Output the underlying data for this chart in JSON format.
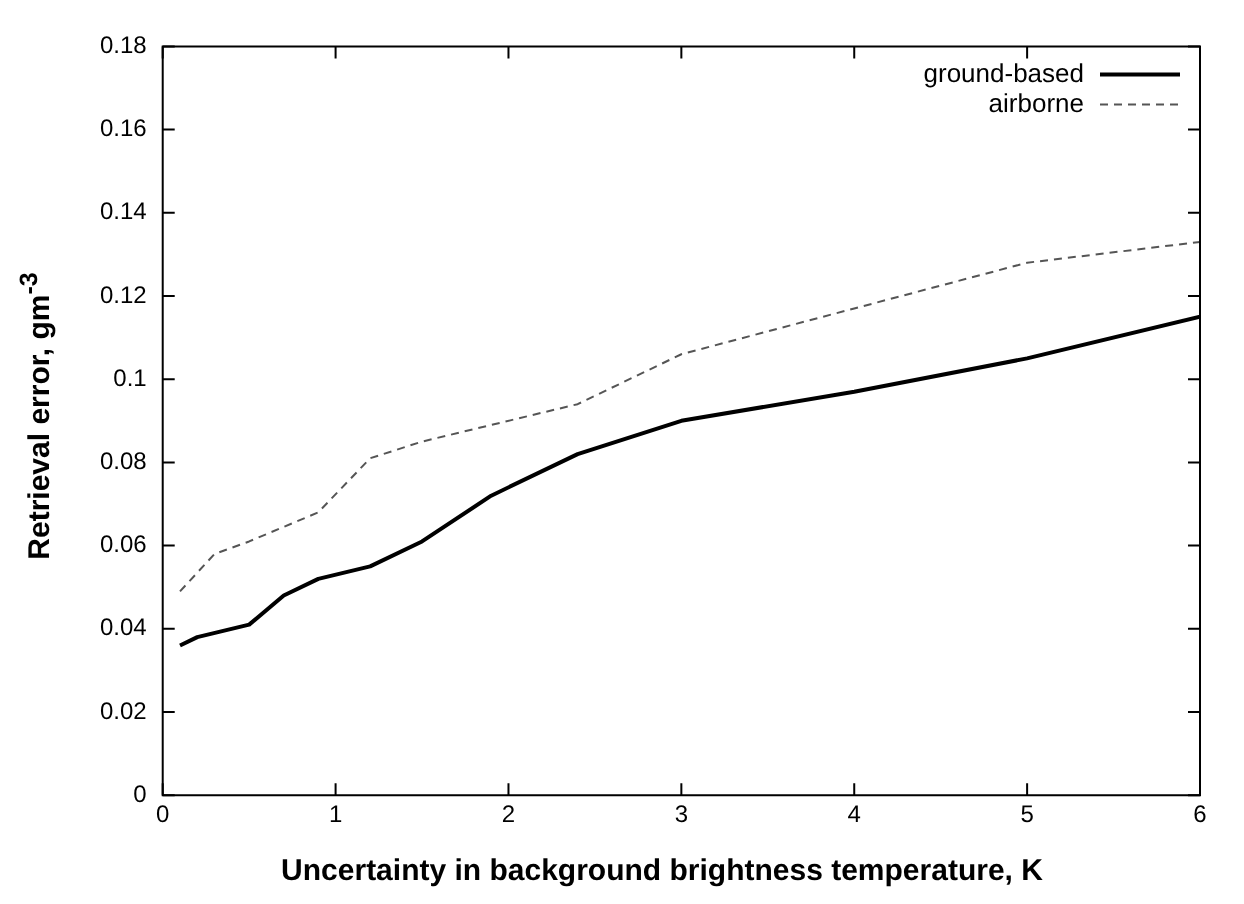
{
  "chart_data": {
    "type": "line",
    "xlabel": "Uncertainty in background brightness temperature, K",
    "ylabel": "Retrieval error, gm$^{-3}$",
    "xlim": [
      0,
      6
    ],
    "xticks": [
      0,
      1,
      2,
      3,
      4,
      5,
      6
    ],
    "ylim": [
      0,
      0.18
    ],
    "yticks": [
      0,
      0.02,
      0.04,
      0.06,
      0.08,
      0.1,
      0.12,
      0.14,
      0.16,
      0.18
    ],
    "grid": false,
    "legend": "top right",
    "marker": "none",
    "series": [
      {
        "name": "ground-based",
        "color": "#000000",
        "line_style": "solid",
        "x": [
          0.1,
          0.2,
          0.5,
          0.7,
          0.9,
          1.2,
          1.5,
          1.9,
          2.4,
          3,
          4,
          5,
          6
        ],
        "values": [
          0.036,
          0.038,
          0.041,
          0.048,
          0.052,
          0.055,
          0.061,
          0.072,
          0.082,
          0.09,
          0.097,
          0.105,
          0.115
        ]
      },
      {
        "name": "airborne",
        "color": "#555555",
        "line_style": "dashed",
        "x": [
          0.1,
          0.3,
          0.5,
          0.9,
          1.2,
          1.5,
          2.4,
          3,
          4,
          5,
          6
        ],
        "values": [
          0.049,
          0.058,
          0.061,
          0.068,
          0.081,
          0.085,
          0.094,
          0.106,
          0.117,
          0.128,
          0.133
        ]
      }
    ]
  }
}
